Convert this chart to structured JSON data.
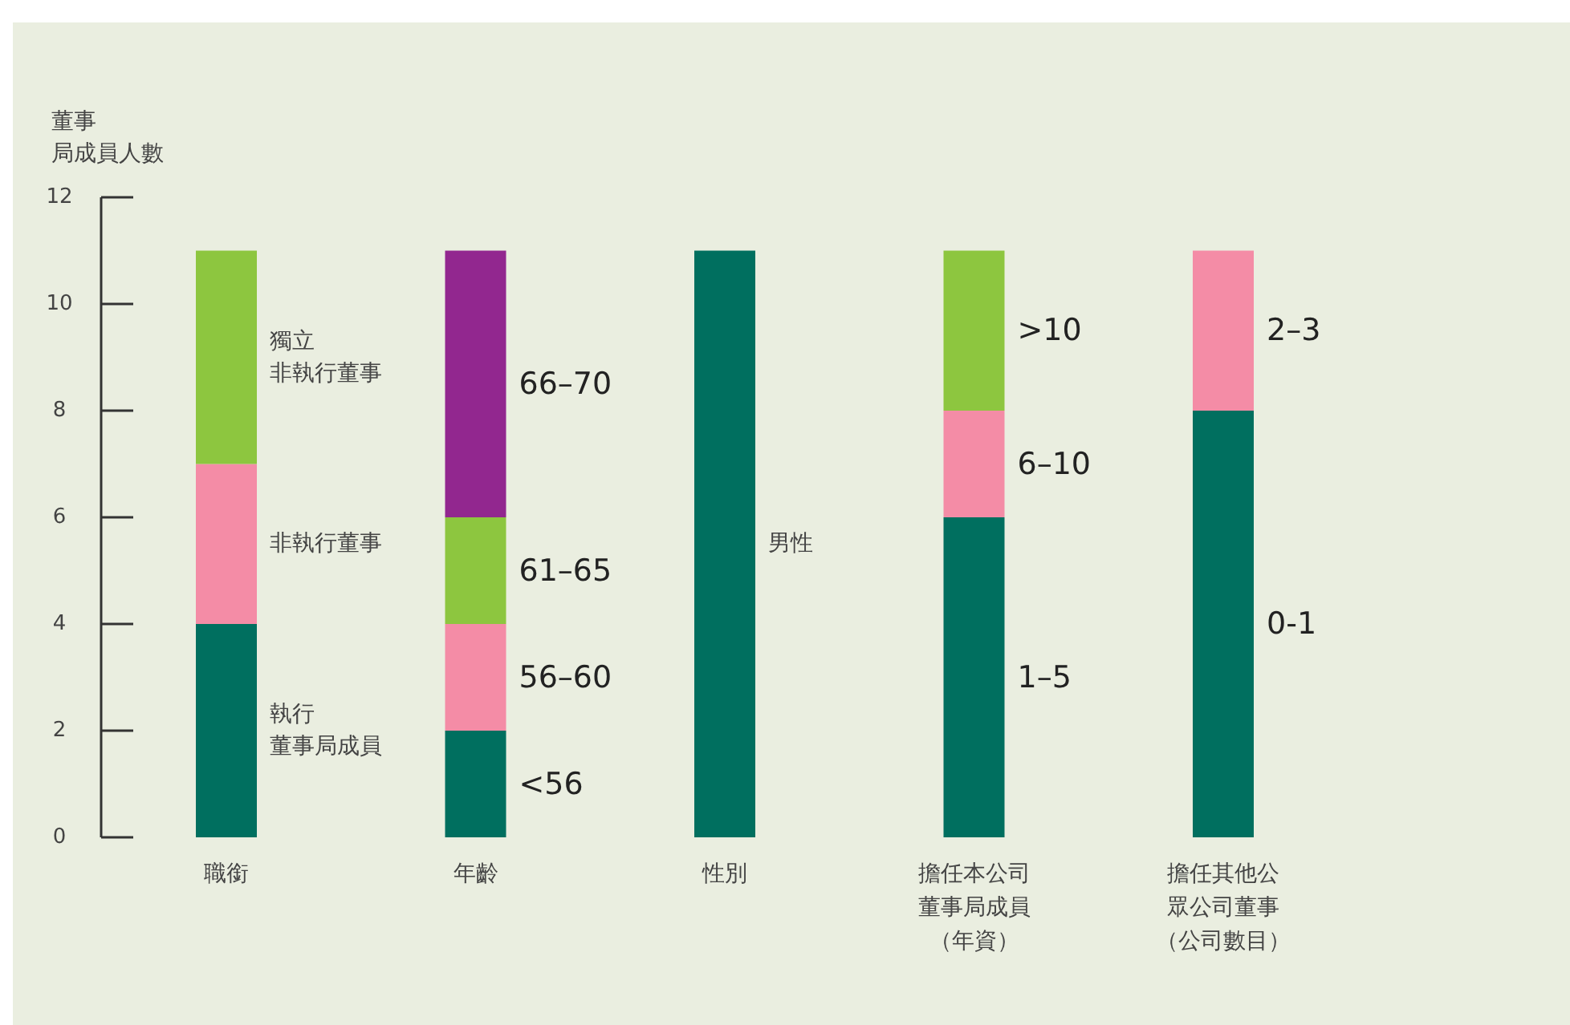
{
  "chart_data": {
    "type": "bar",
    "stacked": true,
    "ylabel": "董事局成員人數",
    "categories": [
      "職銜",
      "年齡",
      "性別",
      "擔任本公司董事局成員（年資）",
      "擔任其他公眾公司董事（公司數目）"
    ],
    "series": [
      {
        "name": "執行董事局成員",
        "color": "#006f5f",
        "values": [
          4,
          null,
          null,
          null,
          null
        ]
      },
      {
        "name": "非執行董事",
        "color": "#f48ca6",
        "values": [
          3,
          null,
          null,
          null,
          null
        ]
      },
      {
        "name": "獨立非執行董事",
        "color": "#8dc63f",
        "values": [
          4,
          null,
          null,
          null,
          null
        ]
      },
      {
        "name": "<56",
        "color": "#006f5f",
        "values": [
          null,
          2,
          null,
          null,
          null
        ]
      },
      {
        "name": "56–60",
        "color": "#f48ca6",
        "values": [
          null,
          2,
          null,
          null,
          null
        ]
      },
      {
        "name": "61–65",
        "color": "#8dc63f",
        "values": [
          null,
          2,
          null,
          null,
          null
        ]
      },
      {
        "name": "66–70",
        "color": "#92278f",
        "values": [
          null,
          5,
          null,
          null,
          null
        ]
      },
      {
        "name": "男性",
        "color": "#006f5f",
        "values": [
          null,
          null,
          11,
          null,
          null
        ]
      },
      {
        "name": "1–5",
        "color": "#006f5f",
        "values": [
          null,
          null,
          null,
          6,
          null
        ]
      },
      {
        "name": "6–10",
        "color": "#f48ca6",
        "values": [
          null,
          null,
          null,
          2,
          null
        ]
      },
      {
        "name": ">10",
        "color": "#8dc63f",
        "values": [
          null,
          null,
          null,
          3,
          null
        ]
      },
      {
        "name": "0-1",
        "color": "#006f5f",
        "values": [
          null,
          null,
          null,
          null,
          8
        ]
      },
      {
        "name": "2–3",
        "color": "#f48ca6",
        "values": [
          null,
          null,
          null,
          null,
          3
        ]
      }
    ],
    "ylim": [
      0,
      12
    ],
    "yticks": [
      0,
      2,
      4,
      6,
      8,
      10,
      12
    ],
    "grid": false
  }
}
